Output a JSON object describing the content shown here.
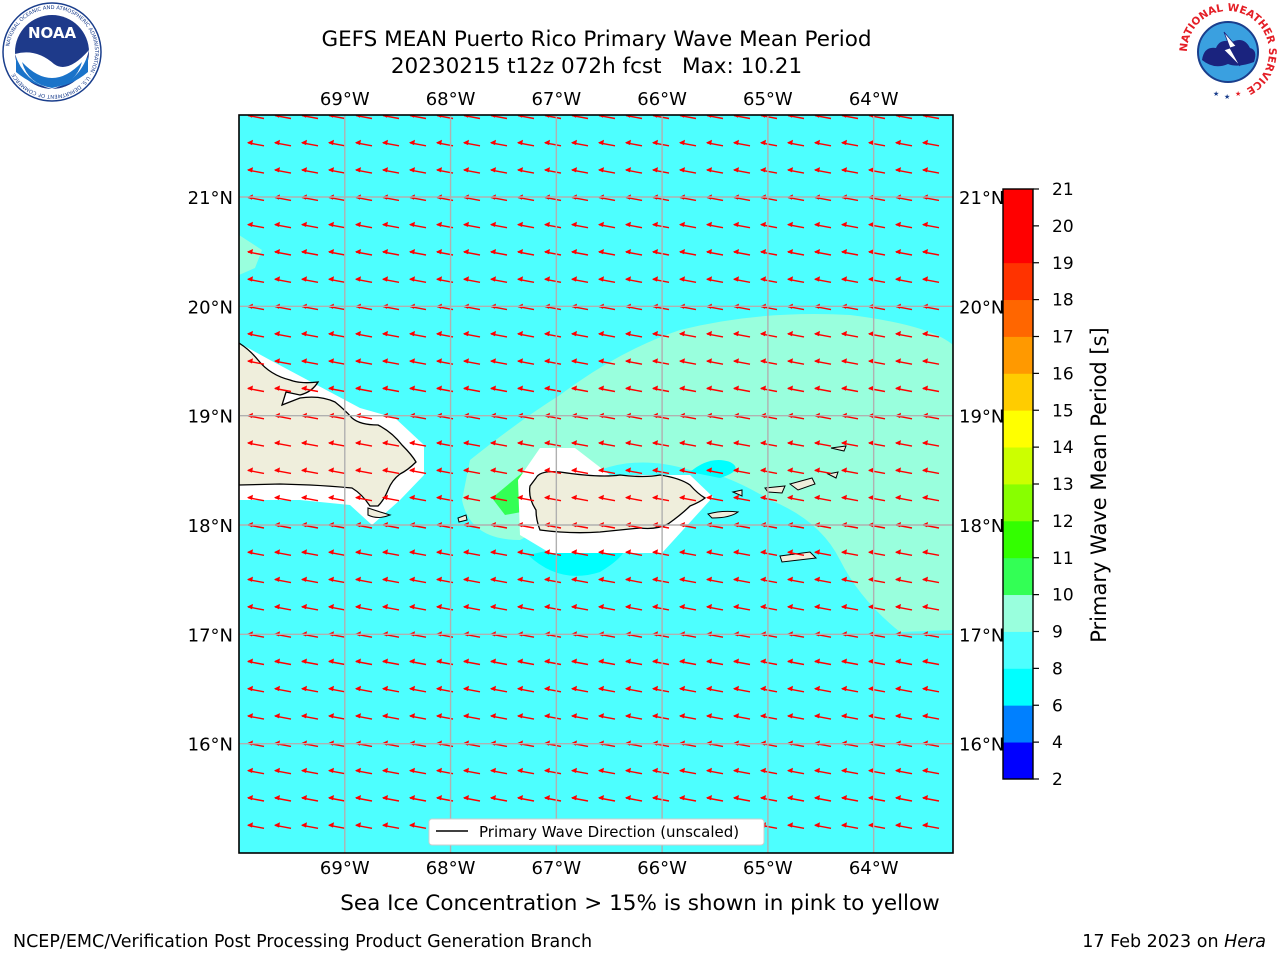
{
  "header": {
    "title_line1": "GEFS MEAN Puerto Rico Primary Wave Mean Period",
    "title_line2": "20230215 t12z 072h fcst   Max: 10.21"
  },
  "logos": {
    "noaa_text": "NOAA",
    "noaa_ring_text": "NATIONAL OCEANIC AND ATMOSPHERIC ADMINISTRATION · U.S. DEPARTMENT OF COMMERCE",
    "nws_ring_text": "NATIONAL WEATHER SERVICE"
  },
  "map": {
    "lon_labels": [
      "69°W",
      "68°W",
      "67°W",
      "66°W",
      "65°W",
      "64°W"
    ],
    "lat_labels": [
      "21°N",
      "20°N",
      "19°N",
      "18°N",
      "17°N",
      "16°N"
    ],
    "lon_values": [
      -69,
      -68,
      -67,
      -66,
      -65,
      -64
    ],
    "lat_values": [
      21,
      20,
      19,
      18,
      17,
      16
    ],
    "extent": {
      "lon_min": -70.0,
      "lon_max": -63.25,
      "lat_min": 15.0,
      "lat_max": 21.75
    },
    "background_period_band": "8-9",
    "arrow_color": "#ff0000",
    "arrow_direction": "toward west-southwest",
    "legend_label": "Primary Wave Direction (unscaled)"
  },
  "colorbar": {
    "label": "Primary Wave Mean Period [s]",
    "ticks": [
      "2",
      "4",
      "6",
      "8",
      "9",
      "10",
      "11",
      "12",
      "13",
      "14",
      "15",
      "16",
      "17",
      "18",
      "19",
      "20",
      "21"
    ],
    "colors": [
      "#0000ff",
      "#0080ff",
      "#00ffff",
      "#4dffff",
      "#99ffdd",
      "#33ff55",
      "#33ff00",
      "#88ff00",
      "#ccff00",
      "#ffff00",
      "#ffcc00",
      "#ff9900",
      "#ff6600",
      "#ff3300",
      "#ff0000",
      "#ff0000"
    ]
  },
  "footer": {
    "ice_note": "Sea Ice Concentration > 15% is shown in pink to yellow",
    "left": "NCEP/EMC/Verification Post Processing Product Generation Branch",
    "right_date": "17 Feb 2023 on",
    "right_host": "Hera"
  }
}
